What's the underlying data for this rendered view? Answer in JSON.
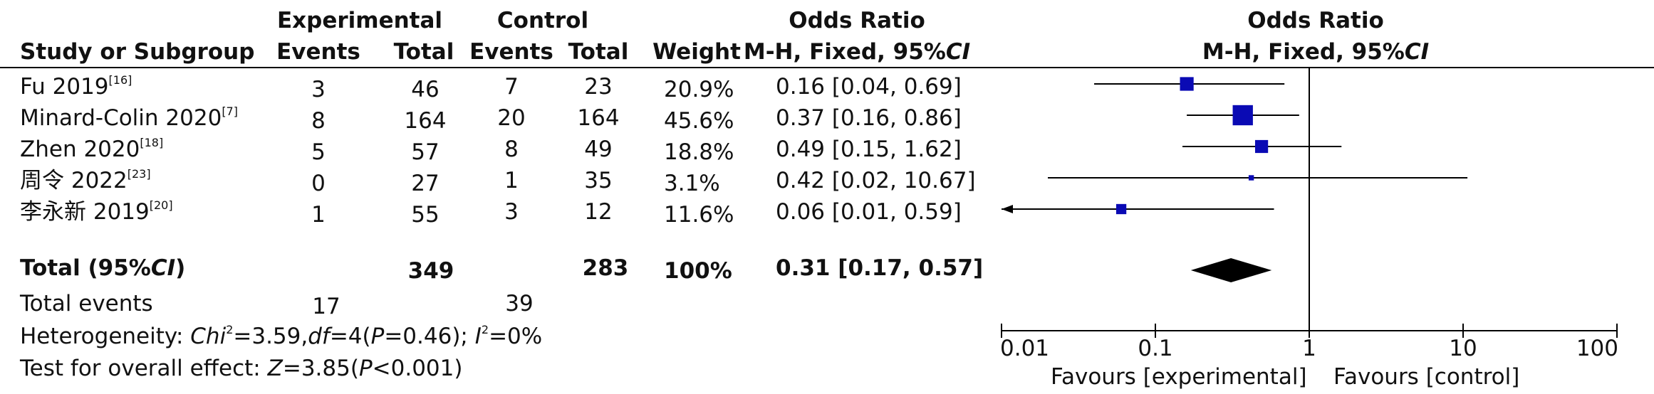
{
  "colors": {
    "marker": "#0a0ab4",
    "line": "#000000",
    "diamond": "#000000"
  },
  "header": {
    "experimental": "Experimental",
    "control": "Control",
    "odds_ratio_table": "Odds Ratio",
    "odds_ratio_plot": "Odds Ratio",
    "study": "Study or Subgroup",
    "events_e": "Events",
    "total_e": "Total",
    "events_c": "Events",
    "total_c": "Total",
    "weight": "Weight",
    "method_table_prefix": "M-H, Fixed, 95%",
    "method_table_ci": "CI",
    "method_plot_prefix": "M-H, Fixed, 95%",
    "method_plot_ci": "CI"
  },
  "studies": [
    {
      "name": "Fu 2019",
      "ref": "[16]",
      "ev_e": "3",
      "tot_e": "46",
      "ev_c": "7",
      "tot_c": "23",
      "weight": "20.9%",
      "ci_text": "0.16 [0.04, 0.69]"
    },
    {
      "name": "Minard-Colin 2020",
      "ref": "[7]",
      "ev_e": "8",
      "tot_e": "164",
      "ev_c": "20",
      "tot_c": "164",
      "weight": "45.6%",
      "ci_text": "0.37 [0.16, 0.86]"
    },
    {
      "name": "Zhen 2020",
      "ref": "[18]",
      "ev_e": "5",
      "tot_e": "57",
      "ev_c": "8",
      "tot_c": "49",
      "weight": "18.8%",
      "ci_text": "0.49 [0.15, 1.62]"
    },
    {
      "name": "周令 2022",
      "ref": "[23]",
      "ev_e": "0",
      "tot_e": "27",
      "ev_c": "1",
      "tot_c": "35",
      "weight": "3.1%",
      "ci_text": "0.42 [0.02, 10.67]"
    },
    {
      "name": "李永新 2019",
      "ref": "[20]",
      "ev_e": "1",
      "tot_e": "55",
      "ev_c": "3",
      "tot_c": "12",
      "weight": "11.6%",
      "ci_text": "0.06 [0.01, 0.59]"
    }
  ],
  "total": {
    "label_prefix": "Total (95%",
    "label_ci": "CI",
    "label_suffix": ")",
    "tot_e": "349",
    "tot_c": "283",
    "weight": "100%",
    "ci_text": "0.31 [0.17, 0.57]"
  },
  "events": {
    "label": "Total events",
    "ev_e": "17",
    "ev_c": "39"
  },
  "heterogeneity": {
    "label": "Heterogeneity: ",
    "chi": "Chi",
    "chi_sup": "2",
    "chi_val": "=3.59,",
    "df": "df",
    "df_val": "=4(",
    "p": "P",
    "p_val": "=0.46); ",
    "i": "I",
    "i_sup": "2",
    "i_val": "=0%"
  },
  "overall": {
    "label": "Test for overall effect: ",
    "z": "Z",
    "z_val": "=3.85(",
    "p": "P",
    "p_val": "<0.001)"
  },
  "chart_data": {
    "type": "forest",
    "x_scale": "log",
    "xlim": [
      0.01,
      100
    ],
    "ticks": [
      0.01,
      0.1,
      1,
      10,
      100
    ],
    "tick_labels": [
      "0.01",
      "0.1",
      "1",
      "10",
      "100"
    ],
    "reference_line": 1,
    "favours_left": "Favours [experimental]",
    "favours_right": "Favours [control]",
    "studies": [
      {
        "name": "Fu 2019",
        "or": 0.16,
        "lo": 0.04,
        "hi": 0.69,
        "weight": 20.9
      },
      {
        "name": "Minard-Colin 2020",
        "or": 0.37,
        "lo": 0.16,
        "hi": 0.86,
        "weight": 45.6
      },
      {
        "name": "Zhen 2020",
        "or": 0.49,
        "lo": 0.15,
        "hi": 1.62,
        "weight": 18.8
      },
      {
        "name": "周令 2022",
        "or": 0.42,
        "lo": 0.02,
        "hi": 10.67,
        "weight": 3.1
      },
      {
        "name": "李永新 2019",
        "or": 0.06,
        "lo": 0.01,
        "hi": 0.59,
        "weight": 11.6,
        "arrow_left": true
      }
    ],
    "pooled": {
      "or": 0.31,
      "lo": 0.17,
      "hi": 0.57
    }
  }
}
